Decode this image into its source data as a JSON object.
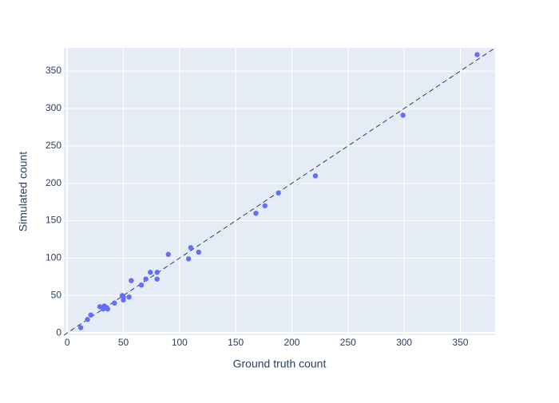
{
  "chart_data": {
    "type": "scatter",
    "x_label": "Ground truth count",
    "y_label": "Simulated count",
    "x": [
      12,
      18,
      21,
      29,
      32,
      33,
      35,
      36,
      42,
      49,
      50,
      50,
      55,
      57,
      66,
      70,
      74,
      80,
      80,
      90,
      108,
      110,
      117,
      168,
      176,
      188,
      221,
      299,
      365
    ],
    "y": [
      7,
      18,
      24,
      35,
      32,
      36,
      34,
      32,
      40,
      50,
      44,
      48,
      48,
      70,
      64,
      72,
      81,
      72,
      81,
      105,
      99,
      114,
      108,
      160,
      170,
      187,
      210,
      291,
      372
    ],
    "color": "#636efa",
    "xlim": [
      -3,
      381
    ],
    "ylim": [
      -3,
      381
    ],
    "xticks": [
      0,
      50,
      100,
      150,
      200,
      250,
      300,
      350
    ],
    "yticks": [
      0,
      50,
      100,
      150,
      200,
      250,
      300,
      350
    ],
    "grid": true
  }
}
